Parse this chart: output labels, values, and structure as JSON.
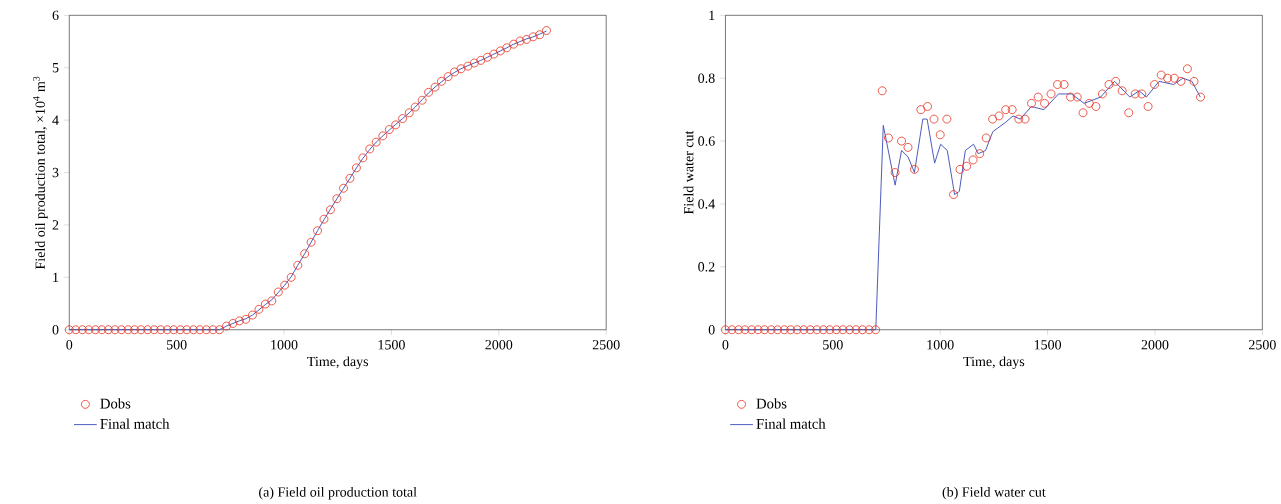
{
  "chart_data": [
    {
      "type": "line",
      "title": "(a) Field oil production total",
      "xlabel": "Time, days",
      "ylabel": "Field oil production total, ×10$^{4}$ m$^{3}$",
      "xlim": [
        0,
        2500
      ],
      "ylim": [
        0,
        6
      ],
      "xticks": [
        0,
        500,
        1000,
        1500,
        2000,
        2500
      ],
      "yticks": [
        0,
        1,
        2,
        3,
        4,
        5,
        6
      ],
      "grid": false,
      "legend": "bottom left",
      "series": [
        {
          "name": "Dobs",
          "type": "scatter",
          "marker": "circle",
          "color": "#e8311f",
          "x": [
            0,
            30,
            61,
            91,
            122,
            152,
            182,
            213,
            243,
            274,
            304,
            334,
            365,
            395,
            426,
            456,
            486,
            517,
            547,
            578,
            608,
            638,
            669,
            699,
            732,
            762,
            792,
            822,
            853,
            883,
            913,
            943,
            973,
            1003,
            1033,
            1064,
            1096,
            1126,
            1156,
            1186,
            1216,
            1246,
            1277,
            1307,
            1337,
            1367,
            1399,
            1429,
            1460,
            1490,
            1520,
            1552,
            1583,
            1611,
            1643,
            1673,
            1703,
            1733,
            1764,
            1794,
            1824,
            1856,
            1886,
            1916,
            1947,
            1977,
            2007,
            2037,
            2069,
            2099,
            2129,
            2160,
            2190,
            2222
          ],
          "values": [
            0,
            0,
            0,
            0,
            0,
            0,
            0,
            0,
            0,
            0,
            0,
            0,
            0,
            0,
            0,
            0,
            0,
            0,
            0,
            0,
            0,
            0,
            0,
            0,
            0.07,
            0.12,
            0.17,
            0.2,
            0.28,
            0.39,
            0.49,
            0.55,
            0.72,
            0.85,
            1.0,
            1.23,
            1.45,
            1.67,
            1.89,
            2.11,
            2.29,
            2.5,
            2.7,
            2.89,
            3.09,
            3.28,
            3.45,
            3.58,
            3.7,
            3.82,
            3.91,
            4.03,
            4.14,
            4.25,
            4.38,
            4.53,
            4.63,
            4.74,
            4.83,
            4.92,
            4.98,
            5.03,
            5.09,
            5.14,
            5.2,
            5.26,
            5.32,
            5.38,
            5.45,
            5.51,
            5.54,
            5.59,
            5.63,
            5.71
          ]
        },
        {
          "name": "Final match",
          "marker": "none",
          "line_style": "solid",
          "color": "#4050b8",
          "x": [
            0,
            699,
            732,
            762,
            792,
            822,
            853,
            883,
            913,
            943,
            973,
            1003,
            1033,
            1064,
            1096,
            1126,
            1156,
            1186,
            1216,
            1246,
            1277,
            1307,
            1337,
            1367,
            1399,
            1429,
            1460,
            1490,
            1520,
            1552,
            1583,
            1611,
            1643,
            1673,
            1703,
            1733,
            1764,
            1794,
            1824,
            1856,
            1886,
            1916,
            1947,
            1977,
            2007,
            2037,
            2069,
            2099,
            2129,
            2160,
            2190,
            2222
          ],
          "values": [
            0,
            0,
            0.07,
            0.12,
            0.17,
            0.21,
            0.28,
            0.38,
            0.48,
            0.57,
            0.71,
            0.85,
            1.01,
            1.23,
            1.45,
            1.67,
            1.89,
            2.1,
            2.3,
            2.5,
            2.7,
            2.89,
            3.09,
            3.27,
            3.44,
            3.58,
            3.7,
            3.81,
            3.92,
            4.03,
            4.14,
            4.25,
            4.39,
            4.52,
            4.63,
            4.73,
            4.83,
            4.91,
            4.98,
            5.04,
            5.09,
            5.14,
            5.2,
            5.26,
            5.32,
            5.38,
            5.45,
            5.5,
            5.55,
            5.59,
            5.64,
            5.7
          ]
        }
      ]
    },
    {
      "type": "line",
      "title": "(b) Field water cut",
      "xlabel": "Time, days",
      "ylabel": "Field water cut",
      "xlim": [
        0,
        2500
      ],
      "ylim": [
        0,
        1
      ],
      "xticks": [
        0,
        500,
        1000,
        1500,
        2000,
        2500
      ],
      "yticks": [
        0,
        0.2,
        0.4,
        0.6,
        0.8,
        1
      ],
      "grid": false,
      "legend": "bottom left",
      "series": [
        {
          "name": "Dobs",
          "type": "scatter",
          "marker": "circle",
          "color": "#e8311f",
          "x": [
            0,
            30,
            61,
            91,
            122,
            152,
            182,
            213,
            243,
            274,
            304,
            334,
            365,
            395,
            426,
            456,
            486,
            517,
            547,
            578,
            608,
            638,
            669,
            699,
            730,
            759,
            790,
            820,
            850,
            880,
            910,
            941,
            971,
            1000,
            1031,
            1062,
            1092,
            1123,
            1153,
            1184,
            1214,
            1244,
            1274,
            1305,
            1335,
            1366,
            1395,
            1425,
            1456,
            1486,
            1516,
            1546,
            1577,
            1607,
            1638,
            1665,
            1694,
            1725,
            1755,
            1786,
            1817,
            1847,
            1878,
            1908,
            1939,
            1968,
            1998,
            2029,
            2059,
            2090,
            2121,
            2151,
            2182,
            2212
          ],
          "values": [
            0,
            0,
            0,
            0,
            0,
            0,
            0,
            0,
            0,
            0,
            0,
            0,
            0,
            0,
            0,
            0,
            0,
            0,
            0,
            0,
            0,
            0,
            0,
            0,
            0.76,
            0.61,
            0.5,
            0.6,
            0.58,
            0.51,
            0.7,
            0.71,
            0.67,
            0.62,
            0.67,
            0.43,
            0.51,
            0.52,
            0.54,
            0.56,
            0.61,
            0.67,
            0.68,
            0.7,
            0.7,
            0.67,
            0.67,
            0.72,
            0.74,
            0.72,
            0.75,
            0.78,
            0.78,
            0.74,
            0.74,
            0.69,
            0.72,
            0.71,
            0.75,
            0.78,
            0.79,
            0.76,
            0.69,
            0.75,
            0.75,
            0.71,
            0.78,
            0.81,
            0.8,
            0.8,
            0.79,
            0.83,
            0.79,
            0.74
          ]
        },
        {
          "name": "Final match",
          "marker": "none",
          "line_style": "solid",
          "color": "#4050b8",
          "x": [
            0,
            700,
            735,
            790,
            820,
            850,
            880,
            919,
            939,
            974,
            1002,
            1033,
            1067,
            1089,
            1117,
            1155,
            1177,
            1211,
            1245,
            1305,
            1339,
            1373,
            1424,
            1483,
            1551,
            1611,
            1670,
            1747,
            1812,
            1883,
            1926,
            1960,
            2019,
            2087,
            2130,
            2172,
            2211
          ],
          "values": [
            0,
            0,
            0.65,
            0.46,
            0.57,
            0.55,
            0.5,
            0.67,
            0.67,
            0.53,
            0.59,
            0.57,
            0.43,
            0.44,
            0.57,
            0.59,
            0.56,
            0.57,
            0.63,
            0.66,
            0.68,
            0.67,
            0.71,
            0.7,
            0.75,
            0.75,
            0.72,
            0.74,
            0.79,
            0.74,
            0.76,
            0.74,
            0.79,
            0.78,
            0.8,
            0.79,
            0.74
          ]
        }
      ]
    }
  ]
}
